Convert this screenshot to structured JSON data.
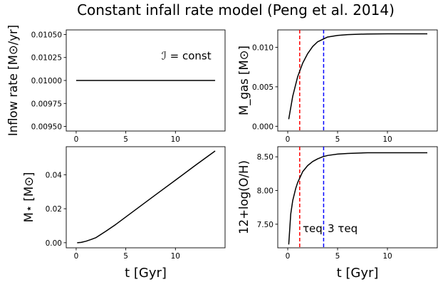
{
  "title": "Constant infall rate model (Peng et al. 2014)",
  "chart_data": [
    {
      "id": "inflow",
      "type": "line",
      "ylabel": "Inflow rate [M⊙/yr]",
      "xlabel": "",
      "xlim": [
        -1,
        15
      ],
      "ylim": [
        0.00945,
        0.01055
      ],
      "xticks": [
        0,
        5,
        10
      ],
      "xtick_labels": [
        "0",
        "5",
        "10"
      ],
      "yticks": [
        0.0095,
        0.00975,
        0.01,
        0.01025,
        0.0105
      ],
      "ytick_labels": [
        "0.00950",
        "0.00975",
        "0.01000",
        "0.01025",
        "0.01050"
      ],
      "series": [
        {
          "color": "#000000",
          "x": [
            0,
            14
          ],
          "y": [
            0.01,
            0.01
          ]
        }
      ],
      "annotations": [
        {
          "text": "ℐ = const",
          "x": 8.6,
          "y": 0.01023,
          "color": "#000000"
        }
      ],
      "vlines": []
    },
    {
      "id": "mgas",
      "type": "line",
      "ylabel": "M_gas [M⊙]",
      "xlabel": "",
      "xlim": [
        -1,
        15
      ],
      "ylim": [
        -0.0006,
        0.0122
      ],
      "xticks": [
        0,
        5,
        10
      ],
      "xtick_labels": [
        "0",
        "5",
        "10"
      ],
      "yticks": [
        0,
        0.005,
        0.01
      ],
      "ytick_labels": [
        "0.000",
        "0.005",
        "0.010"
      ],
      "series": [
        {
          "color": "#000000",
          "x": [
            0.1,
            0.5,
            1,
            1.5,
            2,
            2.5,
            3,
            3.5,
            4,
            5,
            6,
            7,
            8,
            10,
            12,
            14
          ],
          "y": [
            0.0009,
            0.0038,
            0.0063,
            0.008,
            0.0092,
            0.0101,
            0.0107,
            0.011,
            0.0113,
            0.0115,
            0.0116,
            0.01165,
            0.01168,
            0.0117,
            0.0117,
            0.0117
          ]
        }
      ],
      "vlines": [
        {
          "x": 1.2,
          "color": "#ff0000",
          "style": "dashed"
        },
        {
          "x": 3.6,
          "color": "#0000ff",
          "style": "dashed"
        }
      ],
      "annotations": []
    },
    {
      "id": "mstar",
      "type": "line",
      "ylabel": "M⋆ [M⊙]",
      "xlabel": "t [Gyr]",
      "xlim": [
        -1,
        15
      ],
      "ylim": [
        -0.003,
        0.0565
      ],
      "xticks": [
        0,
        5,
        10
      ],
      "xtick_labels": [
        "0",
        "5",
        "10"
      ],
      "yticks": [
        0,
        0.02,
        0.04
      ],
      "ytick_labels": [
        "0.00",
        "0.02",
        "0.04"
      ],
      "series": [
        {
          "color": "#000000",
          "x": [
            0.1,
            0.5,
            1,
            1.5,
            2,
            3,
            4,
            6,
            8,
            10,
            12,
            14
          ],
          "y": [
            0.0,
            0.0002,
            0.0009,
            0.0019,
            0.003,
            0.0068,
            0.0108,
            0.0195,
            0.0282,
            0.0368,
            0.0455,
            0.054
          ]
        }
      ],
      "vlines": [],
      "annotations": []
    },
    {
      "id": "oh",
      "type": "line",
      "ylabel": "12+log(O/H)",
      "xlabel": "t [Gyr]",
      "xlim": [
        -1,
        15
      ],
      "ylim": [
        7.15,
        8.65
      ],
      "xticks": [
        0,
        5,
        10
      ],
      "xtick_labels": [
        "0",
        "5",
        "10"
      ],
      "yticks": [
        7.5,
        8.0,
        8.5
      ],
      "ytick_labels": [
        "7.50",
        "8.00",
        "8.50"
      ],
      "series": [
        {
          "color": "#000000",
          "x": [
            0.1,
            0.3,
            0.5,
            0.8,
            1,
            1.5,
            2,
            2.5,
            3,
            3.5,
            4,
            5,
            6,
            8,
            10,
            12,
            14
          ],
          "y": [
            7.2,
            7.65,
            7.85,
            8.03,
            8.12,
            8.28,
            8.37,
            8.43,
            8.47,
            8.5,
            8.52,
            8.54,
            8.55,
            8.56,
            8.56,
            8.56,
            8.56
          ]
        }
      ],
      "vlines": [
        {
          "x": 1.2,
          "color": "#ff0000",
          "style": "dashed"
        },
        {
          "x": 3.6,
          "color": "#0000ff",
          "style": "dashed"
        }
      ],
      "annotations": [
        {
          "text": "τeq",
          "x": 1.5,
          "y": 7.38,
          "color": "#ff0000"
        },
        {
          "text": "3 τeq",
          "x": 4.0,
          "y": 7.38,
          "color": "#0000ff"
        }
      ]
    }
  ]
}
